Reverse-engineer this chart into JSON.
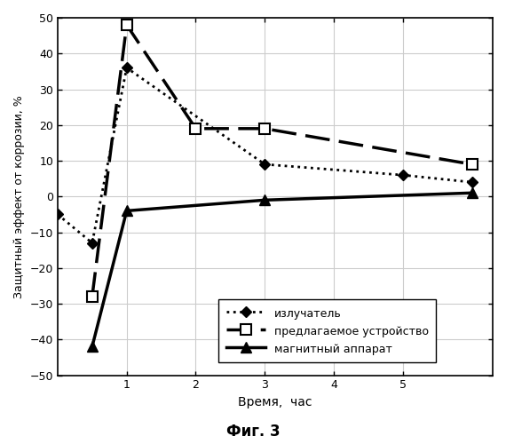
{
  "излучатель": {
    "x": [
      0.0,
      0.5,
      1.0,
      3.0,
      5.0,
      6.0
    ],
    "y": [
      -5,
      -13,
      36,
      9,
      6,
      4
    ]
  },
  "предлагаемое устройство": {
    "x": [
      0.5,
      1.0,
      2.0,
      3.0,
      6.0
    ],
    "y": [
      -28,
      48,
      19,
      19,
      9
    ]
  },
  "магнитный аппарат": {
    "x": [
      0.5,
      1.0,
      3.0,
      6.0
    ],
    "y": [
      -42,
      -4,
      -1,
      1
    ]
  },
  "xlabel": "Время,  час",
  "ylabel": "Защитный эффект от коррозии, %",
  "fig_label": "Фиг. 3",
  "xlim": [
    0,
    6.3
  ],
  "ylim": [
    -50,
    50
  ],
  "xticks": [
    1,
    2,
    3,
    4,
    5
  ],
  "yticks": [
    -50,
    -40,
    -30,
    -20,
    -10,
    0,
    10,
    20,
    30,
    40,
    50
  ],
  "background_color": "#ffffff",
  "grid_color": "#cccccc",
  "legend_labels": [
    "излучатель",
    "предлагаемое устройство",
    "магнитный аппарат"
  ]
}
